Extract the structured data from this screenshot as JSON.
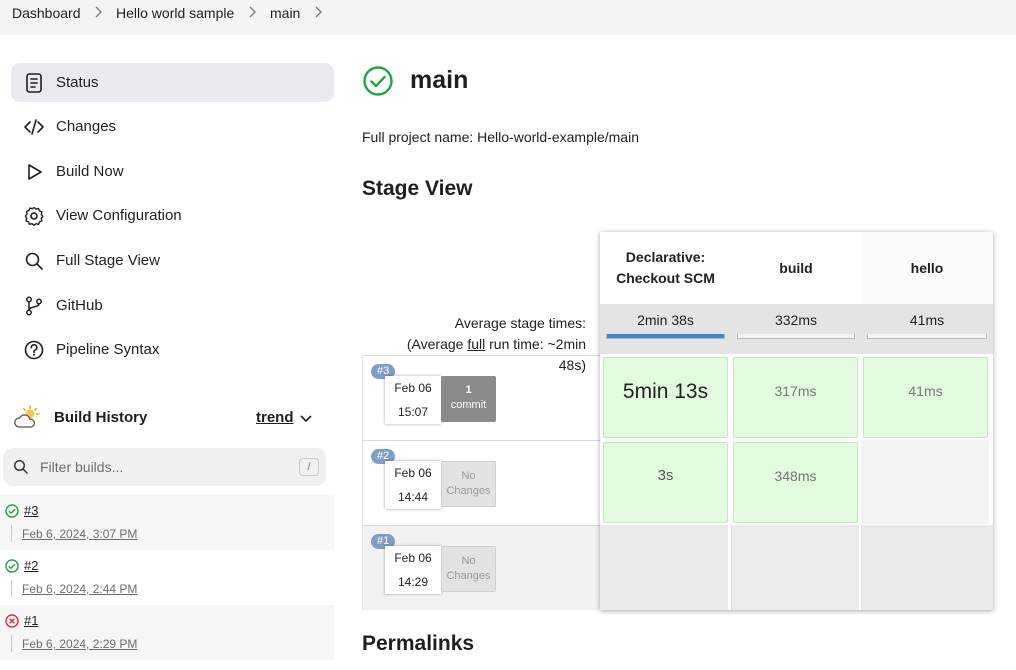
{
  "breadcrumb": [
    "Dashboard",
    "Hello world sample",
    "main"
  ],
  "sidebar": {
    "items": [
      {
        "label": "Status",
        "icon": "status-icon",
        "active": true
      },
      {
        "label": "Changes",
        "icon": "code-icon"
      },
      {
        "label": "Build Now",
        "icon": "play-icon"
      },
      {
        "label": "View Configuration",
        "icon": "gear-icon"
      },
      {
        "label": "Full Stage View",
        "icon": "search-icon"
      },
      {
        "label": "GitHub",
        "icon": "git-branch-icon"
      },
      {
        "label": "Pipeline Syntax",
        "icon": "help-icon"
      }
    ]
  },
  "build_history": {
    "title": "Build History",
    "trend": "trend",
    "filter_placeholder": "Filter builds...",
    "filter_key": "/",
    "builds": [
      {
        "number": "#3",
        "date": "Feb 6, 2024, 3:07 PM",
        "status": "success"
      },
      {
        "number": "#2",
        "date": "Feb 6, 2024, 2:44 PM",
        "status": "success"
      },
      {
        "number": "#1",
        "date": "Feb 6, 2024, 2:29 PM",
        "status": "failed"
      }
    ]
  },
  "main": {
    "title": "main",
    "full_name": "Full project name: Hello-world-example/main",
    "stage_view_heading": "Stage View",
    "permalinks_heading": "Permalinks"
  },
  "stage_view": {
    "average_label_1": "Average stage times:",
    "average_label_2a": "(Average ",
    "average_label_full": "full",
    "average_label_2b": " run time: ~2min",
    "average_label_3": "48s)",
    "stages": [
      {
        "name_1": "Declarative:",
        "name_2": "Checkout SCM",
        "avg": "2min 38s",
        "avg_fraction": 1.0
      },
      {
        "name_1": "build",
        "name_2": "",
        "avg": "332ms",
        "avg_fraction": 0.0
      },
      {
        "name_1": "hello",
        "name_2": "",
        "avg": "41ms",
        "avg_fraction": 0.0
      }
    ],
    "runs": [
      {
        "badge": "#3",
        "month_day": "Feb 06",
        "time": "15:07",
        "changes_1": "1",
        "changes_2": "commit",
        "cells": [
          "5min 13s",
          "317ms",
          "41ms"
        ]
      },
      {
        "badge": "#2",
        "month_day": "Feb 06",
        "time": "14:44",
        "changes_1": "No",
        "changes_2": "Changes",
        "cells": [
          "3s",
          "348ms",
          ""
        ]
      },
      {
        "badge": "#1",
        "month_day": "Feb 06",
        "time": "14:29",
        "changes_1": "No",
        "changes_2": "Changes",
        "cells": [
          "",
          "",
          ""
        ]
      }
    ]
  },
  "colors": {
    "success": "#1ea446",
    "failed": "#d2303f",
    "stage_success_bg": "#e3fbdf",
    "progress": "#4a7fd5"
  }
}
